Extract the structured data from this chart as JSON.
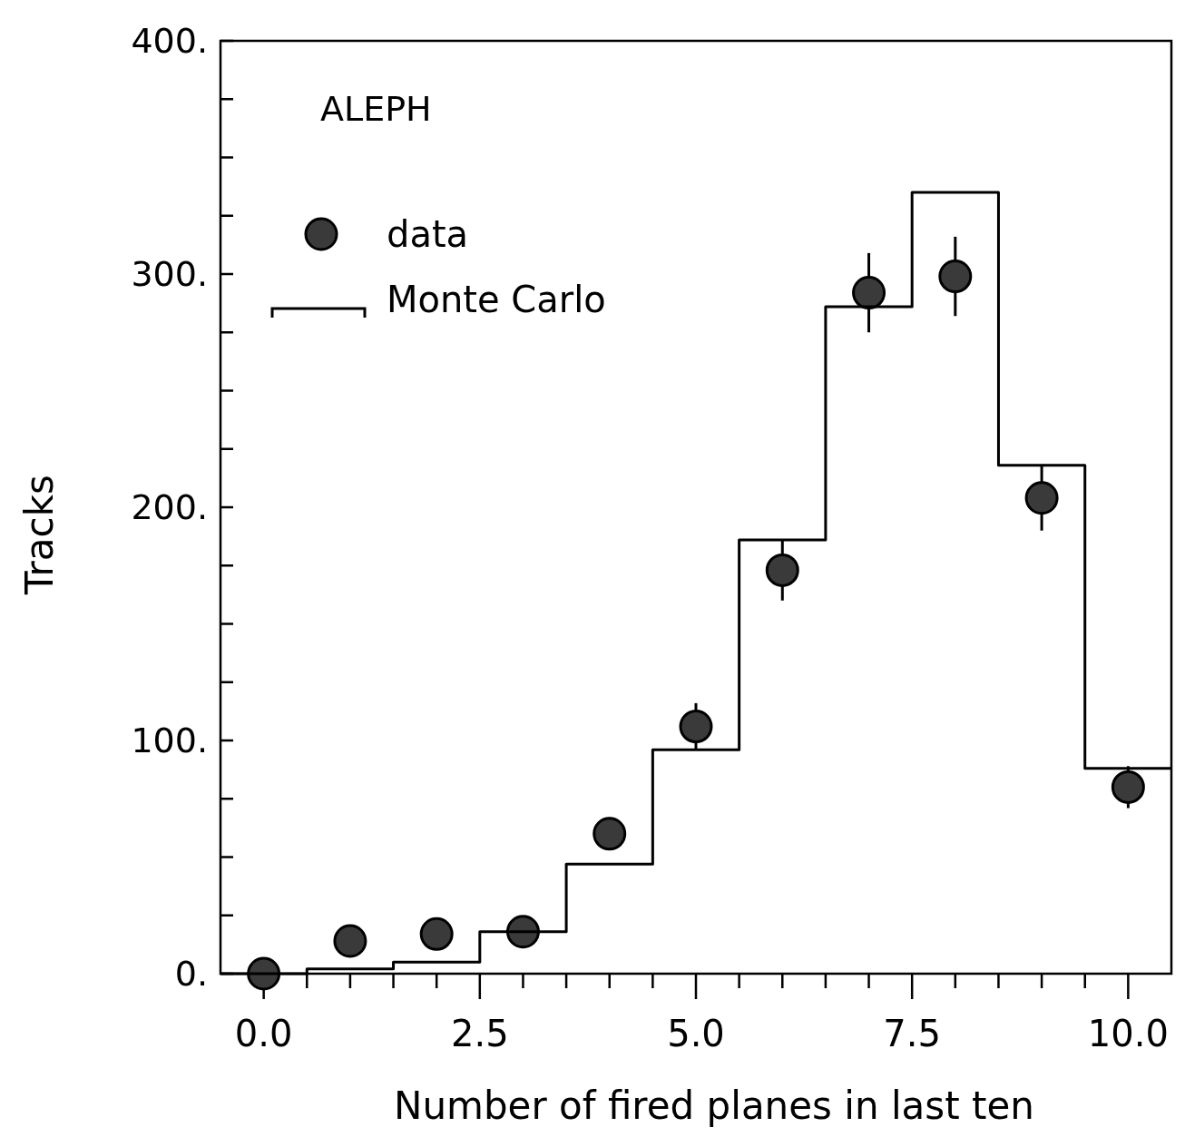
{
  "chart_data": {
    "type": "scatter",
    "xlabel": "Number of fired planes in last ten",
    "ylabel": "Tracks",
    "annotations": [
      "ALEPH"
    ],
    "xlim": [
      -0.5,
      10.5
    ],
    "xticks": [
      {
        "value": 0,
        "label": "0.0"
      },
      {
        "value": 0.5,
        "label": null
      },
      {
        "value": 1,
        "label": null
      },
      {
        "value": 1.5,
        "label": null
      },
      {
        "value": 2,
        "label": null
      },
      {
        "value": 2.5,
        "label": "2.5"
      },
      {
        "value": 3,
        "label": null
      },
      {
        "value": 3.5,
        "label": null
      },
      {
        "value": 4,
        "label": null
      },
      {
        "value": 4.5,
        "label": null
      },
      {
        "value": 5,
        "label": "5.0"
      },
      {
        "value": 5.5,
        "label": null
      },
      {
        "value": 6,
        "label": null
      },
      {
        "value": 6.5,
        "label": null
      },
      {
        "value": 7,
        "label": null
      },
      {
        "value": 7.5,
        "label": "7.5"
      },
      {
        "value": 8,
        "label": null
      },
      {
        "value": 8.5,
        "label": null
      },
      {
        "value": 9,
        "label": null
      },
      {
        "value": 9.5,
        "label": null
      },
      {
        "value": 10,
        "label": "10.0"
      }
    ],
    "ylim": [
      0,
      400
    ],
    "yticks": [
      {
        "value": 0,
        "label": "0."
      },
      {
        "value": 25,
        "label": null
      },
      {
        "value": 50,
        "label": null
      },
      {
        "value": 75,
        "label": null
      },
      {
        "value": 100,
        "label": "100."
      },
      {
        "value": 125,
        "label": null
      },
      {
        "value": 150,
        "label": null
      },
      {
        "value": 175,
        "label": null
      },
      {
        "value": 200,
        "label": "200."
      },
      {
        "value": 225,
        "label": null
      },
      {
        "value": 250,
        "label": null
      },
      {
        "value": 275,
        "label": null
      },
      {
        "value": 300,
        "label": "300."
      },
      {
        "value": 325,
        "label": null
      },
      {
        "value": 350,
        "label": null
      },
      {
        "value": 375,
        "label": null
      },
      {
        "value": 400,
        "label": "400."
      }
    ],
    "grid": false,
    "legend": "top left",
    "marker": "circle",
    "series": [
      {
        "name": "data",
        "color": "#3a3a3a",
        "x": [
          0,
          1,
          2,
          3,
          4,
          5,
          6,
          7,
          8,
          9,
          10
        ],
        "values": [
          0,
          14,
          17,
          18,
          60,
          106,
          173,
          292,
          299,
          204,
          80
        ],
        "errors": [
          null,
          null,
          null,
          null,
          7,
          10,
          13,
          17,
          17,
          14,
          9
        ]
      },
      {
        "name": "Monte Carlo",
        "type": "histogram",
        "color": "#000000",
        "bins": [
          -0.5,
          0.5,
          1.5,
          2.5,
          3.5,
          4.5,
          5.5,
          6.5,
          7.5,
          8.5,
          9.5,
          10.5
        ],
        "values": [
          0,
          2,
          5,
          18,
          47,
          96,
          186,
          286,
          335,
          218,
          88
        ]
      }
    ]
  }
}
